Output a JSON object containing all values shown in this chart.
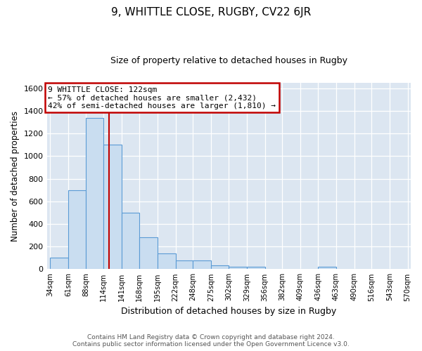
{
  "title": "9, WHITTLE CLOSE, RUGBY, CV22 6JR",
  "subtitle": "Size of property relative to detached houses in Rugby",
  "xlabel": "Distribution of detached houses by size in Rugby",
  "ylabel": "Number of detached properties",
  "bar_values": [
    100,
    700,
    1340,
    1100,
    500,
    280,
    140,
    75,
    75,
    35,
    20,
    20,
    0,
    0,
    0,
    20,
    0,
    0,
    0,
    0
  ],
  "bar_color": "#c9ddf0",
  "bar_edge_color": "#5b9bd5",
  "fig_background_color": "#ffffff",
  "plot_bg_color": "#dce6f1",
  "vline_color": "#c00000",
  "annotation_text_line1": "9 WHITTLE CLOSE: 122sqm",
  "annotation_text_line2": "← 57% of detached houses are smaller (2,432)",
  "annotation_text_line3": "42% of semi-detached houses are larger (1,810) →",
  "annotation_box_color": "#ffffff",
  "annotation_box_edge_color": "#c00000",
  "ylim": [
    0,
    1650
  ],
  "yticks": [
    0,
    200,
    400,
    600,
    800,
    1000,
    1200,
    1400,
    1600
  ],
  "footer_line1": "Contains HM Land Registry data © Crown copyright and database right 2024.",
  "footer_line2": "Contains public sector information licensed under the Open Government Licence v3.0.",
  "bin_edges": [
    34,
    61,
    88,
    114,
    141,
    168,
    195,
    222,
    248,
    275,
    302,
    329,
    356,
    382,
    409,
    436,
    463,
    490,
    516,
    543,
    570
  ],
  "tick_labels": [
    "34sqm",
    "61sqm",
    "88sqm",
    "114sqm",
    "141sqm",
    "168sqm",
    "195sqm",
    "222sqm",
    "248sqm",
    "275sqm",
    "302sqm",
    "329sqm",
    "356sqm",
    "382sqm",
    "409sqm",
    "436sqm",
    "463sqm",
    "490sqm",
    "516sqm",
    "543sqm",
    "570sqm"
  ]
}
